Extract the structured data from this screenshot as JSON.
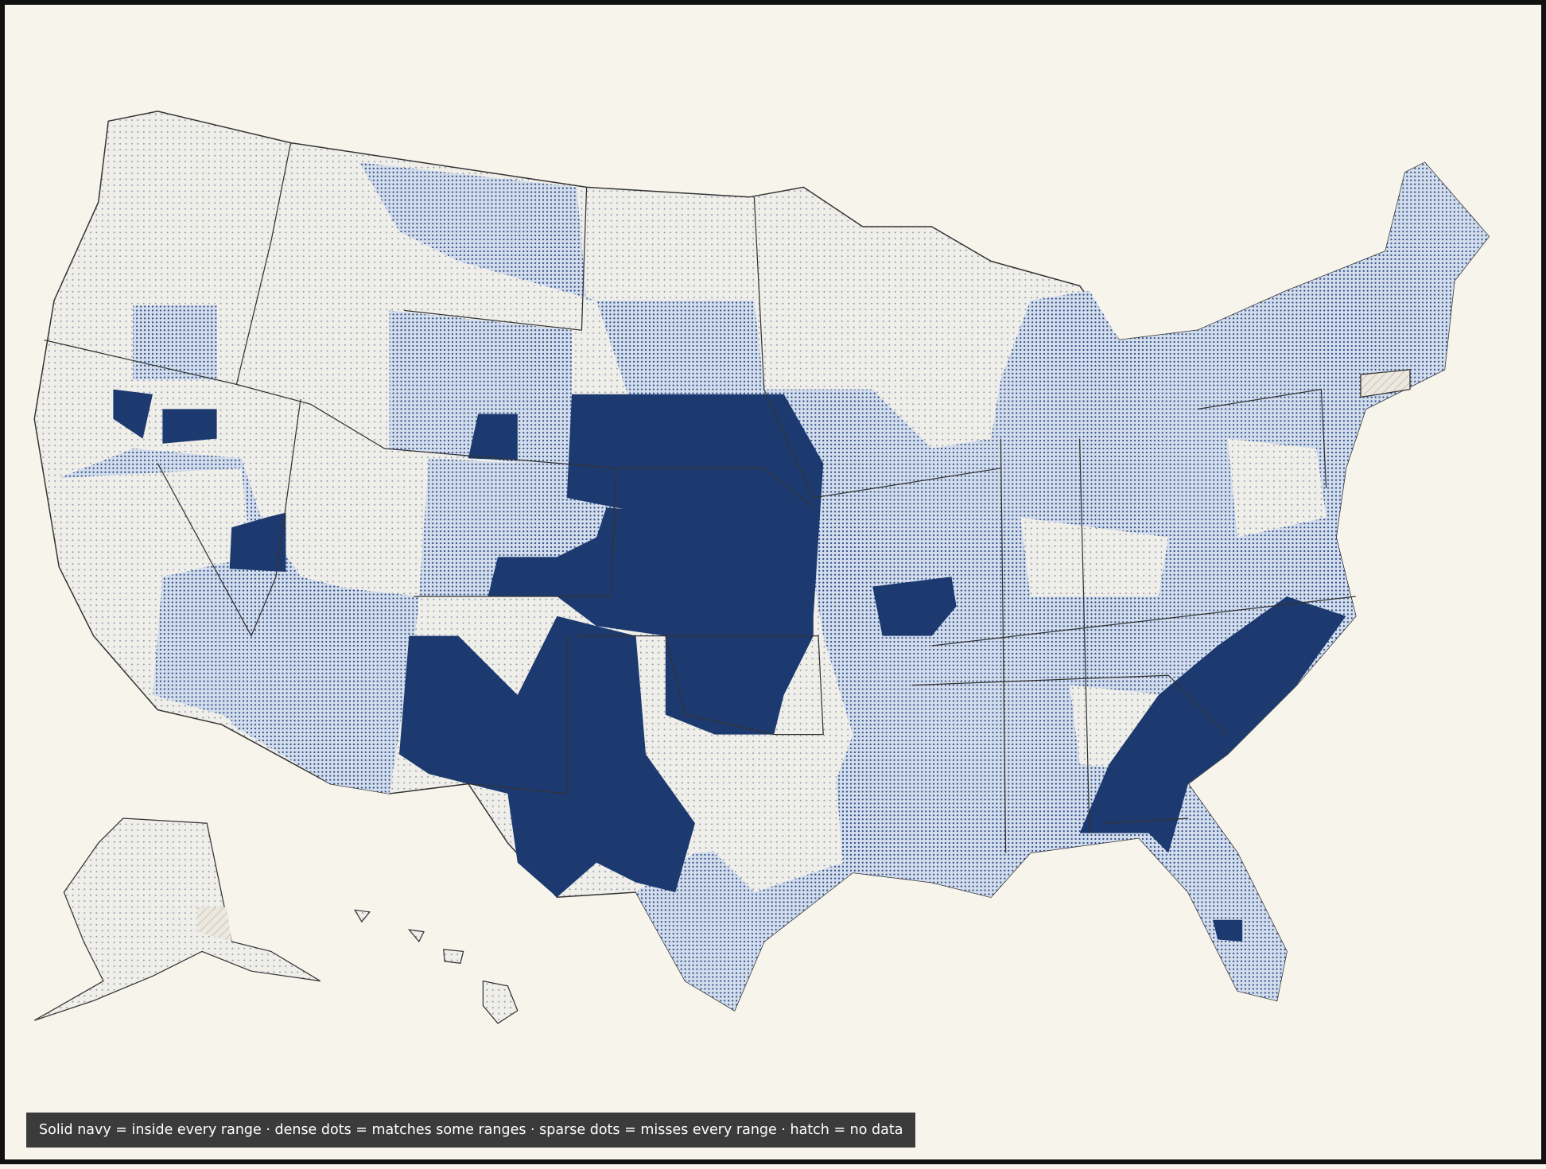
{
  "legend": {
    "text": "Solid navy = inside every range · dense dots = matches some ranges · sparse dots = misses every range · hatch = no data"
  }
}
